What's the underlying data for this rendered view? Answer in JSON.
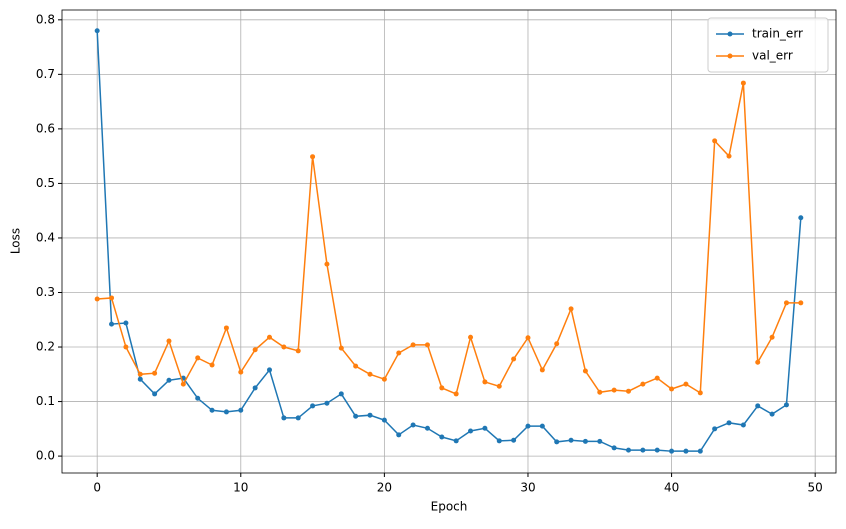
{
  "chart_data": {
    "type": "line",
    "x_label": "Epoch",
    "y_label": "Loss",
    "x": [
      0,
      1,
      2,
      3,
      4,
      5,
      6,
      7,
      8,
      9,
      10,
      11,
      12,
      13,
      14,
      15,
      16,
      17,
      18,
      19,
      20,
      21,
      22,
      23,
      24,
      25,
      26,
      27,
      28,
      29,
      30,
      31,
      32,
      33,
      34,
      35,
      36,
      37,
      38,
      39,
      40,
      41,
      42,
      43,
      44,
      45,
      46,
      47,
      48,
      49
    ],
    "series": [
      {
        "name": "train_err",
        "color": "#1f77b4",
        "values": [
          0.78,
          0.242,
          0.244,
          0.141,
          0.114,
          0.139,
          0.143,
          0.106,
          0.084,
          0.081,
          0.084,
          0.125,
          0.158,
          0.07,
          0.07,
          0.092,
          0.097,
          0.114,
          0.073,
          0.075,
          0.066,
          0.039,
          0.057,
          0.051,
          0.035,
          0.028,
          0.046,
          0.051,
          0.028,
          0.029,
          0.055,
          0.055,
          0.026,
          0.029,
          0.027,
          0.027,
          0.015,
          0.011,
          0.011,
          0.011,
          0.009,
          0.009,
          0.009,
          0.05,
          0.061,
          0.057,
          0.092,
          0.077,
          0.094,
          0.437
        ]
      },
      {
        "name": "val_err",
        "color": "#ff7f0e",
        "values": [
          0.288,
          0.29,
          0.2,
          0.15,
          0.152,
          0.211,
          0.132,
          0.18,
          0.167,
          0.235,
          0.154,
          0.195,
          0.218,
          0.2,
          0.193,
          0.549,
          0.352,
          0.198,
          0.165,
          0.15,
          0.141,
          0.189,
          0.204,
          0.204,
          0.125,
          0.114,
          0.218,
          0.136,
          0.128,
          0.178,
          0.217,
          0.158,
          0.206,
          0.27,
          0.156,
          0.117,
          0.121,
          0.119,
          0.132,
          0.143,
          0.123,
          0.132,
          0.116,
          0.578,
          0.55,
          0.684,
          0.172,
          0.218,
          0.281,
          0.281
        ]
      }
    ],
    "xlim": [
      -2.45,
      51.45
    ],
    "xticks": [
      0,
      10,
      20,
      30,
      40,
      50
    ],
    "ylim": [
      -0.031,
      0.818
    ],
    "yticks": [
      {
        "value": 0,
        "label": "0.0"
      },
      0.1,
      0.2,
      0.3,
      0.4,
      0.5,
      0.6,
      0.7,
      0.8
    ],
    "grid": true,
    "legend": "upper right"
  }
}
